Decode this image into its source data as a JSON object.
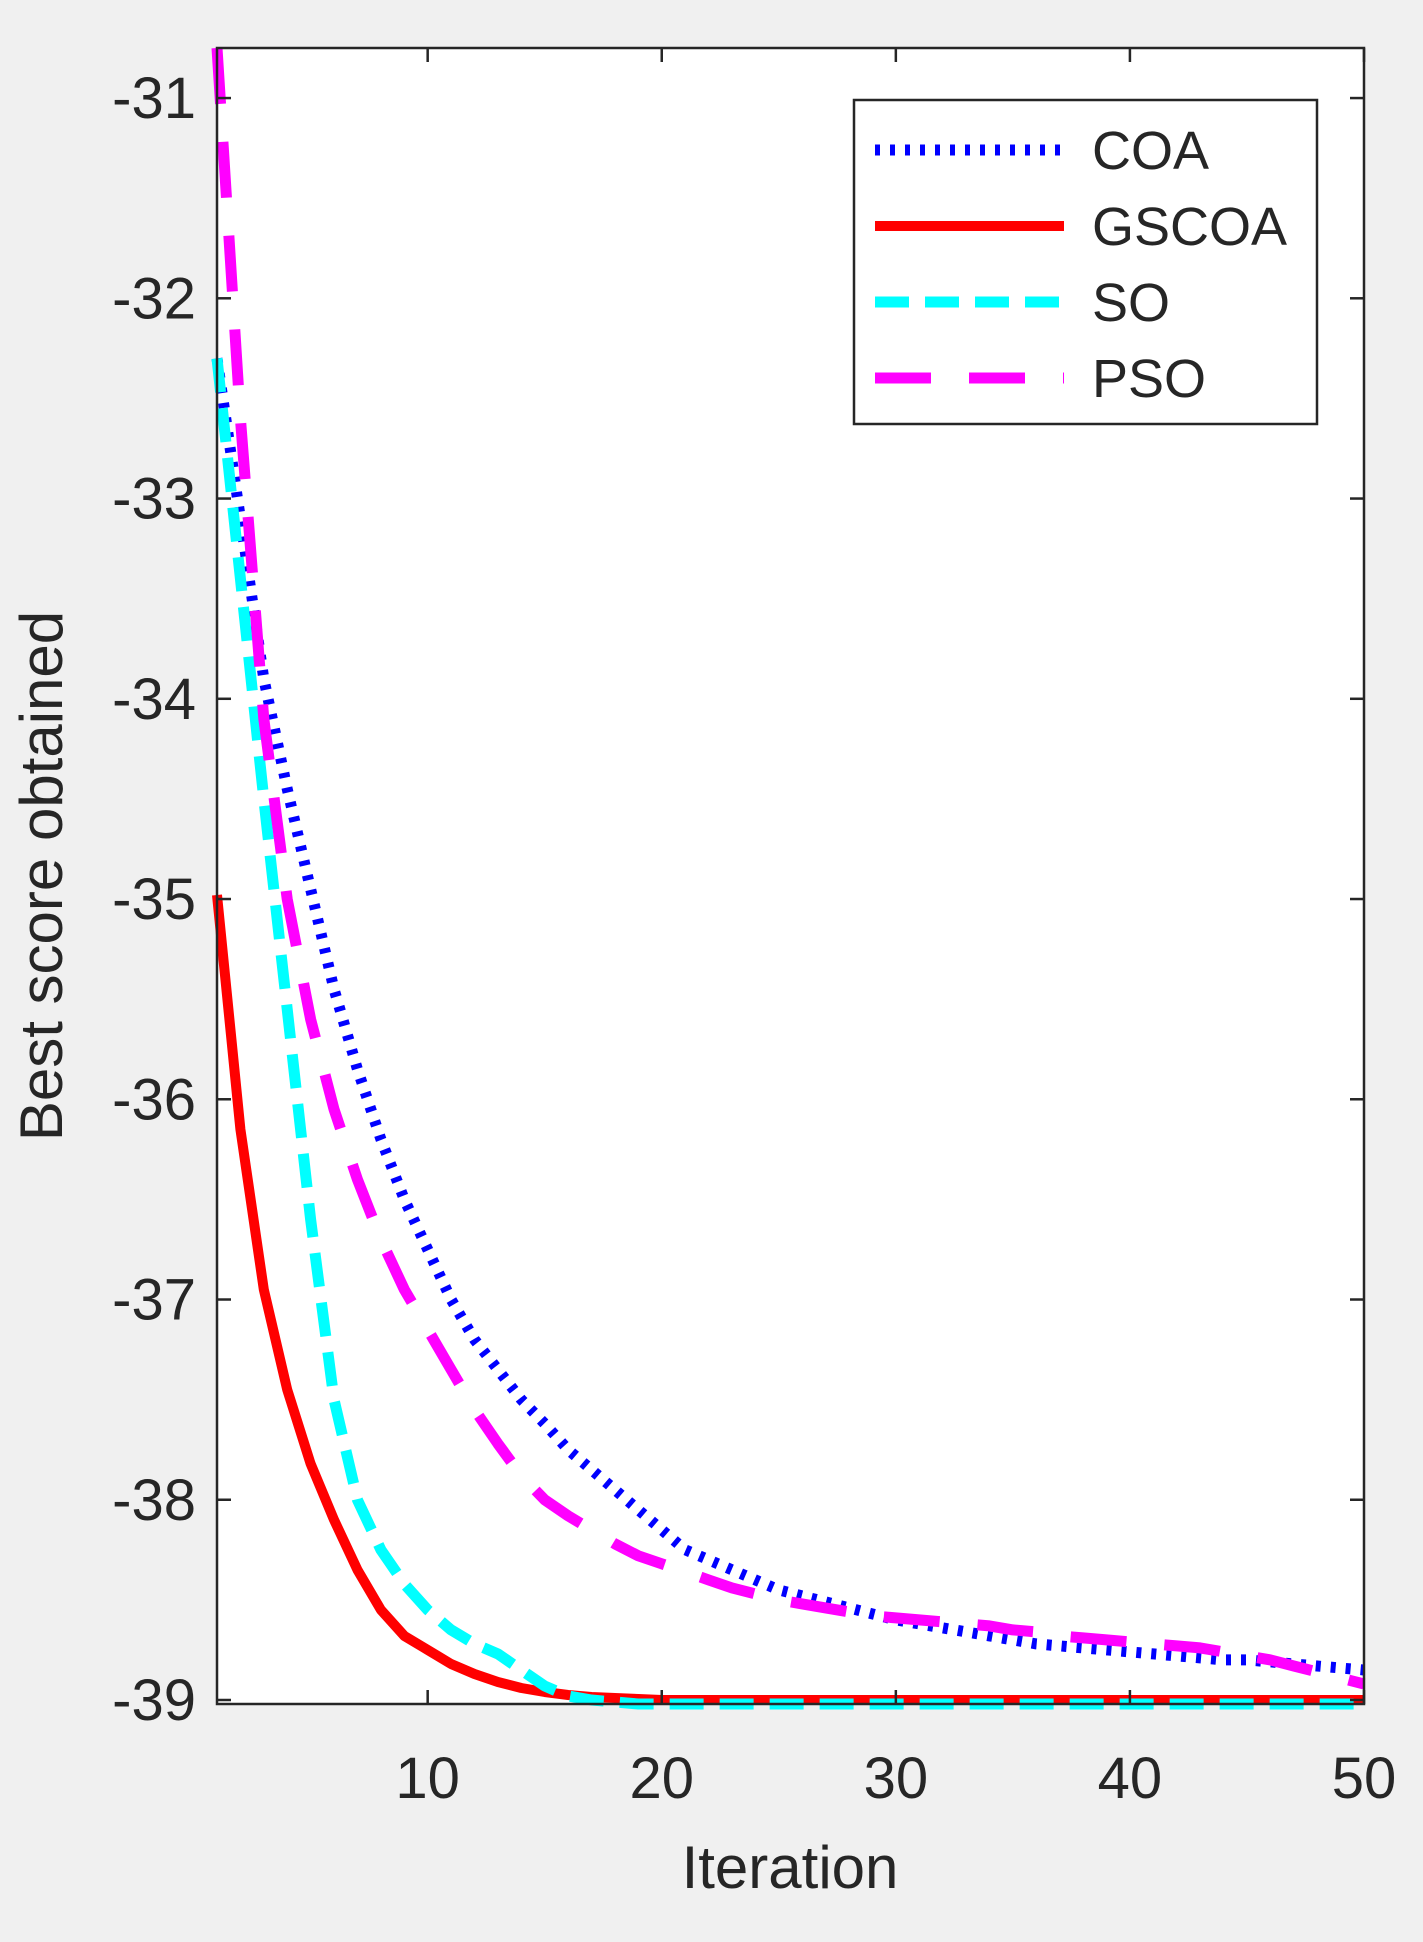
{
  "chart_data": {
    "type": "line",
    "title": "",
    "xlabel": "Iteration",
    "ylabel": "Best score obtained",
    "xlim": [
      1,
      50
    ],
    "ylim": [
      -39.02,
      -30.75
    ],
    "xticks": [
      10,
      20,
      30,
      40,
      50
    ],
    "yticks": [
      -31,
      -32,
      -33,
      -34,
      -35,
      -36,
      -37,
      -38,
      -39
    ],
    "grid": false,
    "legend_position": "top-right",
    "x": [
      1,
      2,
      3,
      4,
      5,
      6,
      7,
      8,
      9,
      10,
      11,
      12,
      13,
      14,
      15,
      16,
      17,
      18,
      19,
      20,
      21,
      22,
      23,
      24,
      25,
      26,
      27,
      28,
      29,
      30,
      31,
      32,
      33,
      34,
      35,
      36,
      37,
      38,
      39,
      40,
      41,
      42,
      43,
      44,
      45,
      46,
      47,
      48,
      49,
      50
    ],
    "series": [
      {
        "name": "COA",
        "color": "#0000ff",
        "style": "dotted",
        "values": [
          -32.3,
          -33.1,
          -33.9,
          -34.45,
          -34.95,
          -35.45,
          -35.85,
          -36.2,
          -36.5,
          -36.75,
          -37.0,
          -37.2,
          -37.35,
          -37.5,
          -37.62,
          -37.75,
          -37.85,
          -37.95,
          -38.05,
          -38.15,
          -38.25,
          -38.3,
          -38.35,
          -38.4,
          -38.45,
          -38.48,
          -38.51,
          -38.54,
          -38.57,
          -38.6,
          -38.62,
          -38.64,
          -38.66,
          -38.68,
          -38.7,
          -38.72,
          -38.73,
          -38.74,
          -38.75,
          -38.76,
          -38.77,
          -38.78,
          -38.79,
          -38.8,
          -38.8,
          -38.81,
          -38.82,
          -38.83,
          -38.84,
          -38.85
        ]
      },
      {
        "name": "GSCOA",
        "color": "#ff0000",
        "style": "solid",
        "values": [
          -34.98,
          -36.15,
          -36.95,
          -37.45,
          -37.82,
          -38.1,
          -38.35,
          -38.55,
          -38.68,
          -38.75,
          -38.82,
          -38.87,
          -38.91,
          -38.94,
          -38.96,
          -38.975,
          -38.985,
          -38.99,
          -38.995,
          -39.0,
          -39.0,
          -39.0,
          -39.0,
          -39.0,
          -39.0,
          -39.0,
          -39.0,
          -39.0,
          -39.0,
          -39.0,
          -39.0,
          -39.0,
          -39.0,
          -39.0,
          -39.0,
          -39.0,
          -39.0,
          -39.0,
          -39.0,
          -39.0,
          -39.0,
          -39.0,
          -39.0,
          -39.0,
          -39.0,
          -39.0,
          -39.0,
          -39.0,
          -39.0,
          -39.0
        ]
      },
      {
        "name": "SO",
        "color": "#00ffff",
        "style": "dashed",
        "values": [
          -32.3,
          -33.4,
          -34.5,
          -35.55,
          -36.6,
          -37.5,
          -38.0,
          -38.25,
          -38.42,
          -38.55,
          -38.65,
          -38.72,
          -38.77,
          -38.85,
          -38.93,
          -38.98,
          -39.0,
          -39.01,
          -39.02,
          -39.02,
          -39.02,
          -39.02,
          -39.02,
          -39.02,
          -39.02,
          -39.02,
          -39.02,
          -39.02,
          -39.02,
          -39.02,
          -39.02,
          -39.02,
          -39.02,
          -39.02,
          -39.02,
          -39.02,
          -39.02,
          -39.02,
          -39.02,
          -39.02,
          -39.02,
          -39.02,
          -39.02,
          -39.02,
          -39.02,
          -39.02,
          -39.02,
          -39.02,
          -39.02,
          -39.02
        ]
      },
      {
        "name": "PSO",
        "color": "#ff00ff",
        "style": "dashed",
        "values": [
          -30.75,
          -32.6,
          -34.1,
          -35.0,
          -35.6,
          -36.05,
          -36.4,
          -36.7,
          -36.95,
          -37.15,
          -37.35,
          -37.55,
          -37.72,
          -37.88,
          -38.0,
          -38.08,
          -38.15,
          -38.22,
          -38.28,
          -38.32,
          -38.36,
          -38.4,
          -38.44,
          -38.47,
          -38.5,
          -38.52,
          -38.54,
          -38.56,
          -38.58,
          -38.59,
          -38.6,
          -38.61,
          -38.62,
          -38.63,
          -38.65,
          -38.66,
          -38.68,
          -38.69,
          -38.7,
          -38.71,
          -38.72,
          -38.73,
          -38.74,
          -38.76,
          -38.78,
          -38.8,
          -38.83,
          -38.86,
          -38.89,
          -38.92
        ]
      }
    ]
  }
}
